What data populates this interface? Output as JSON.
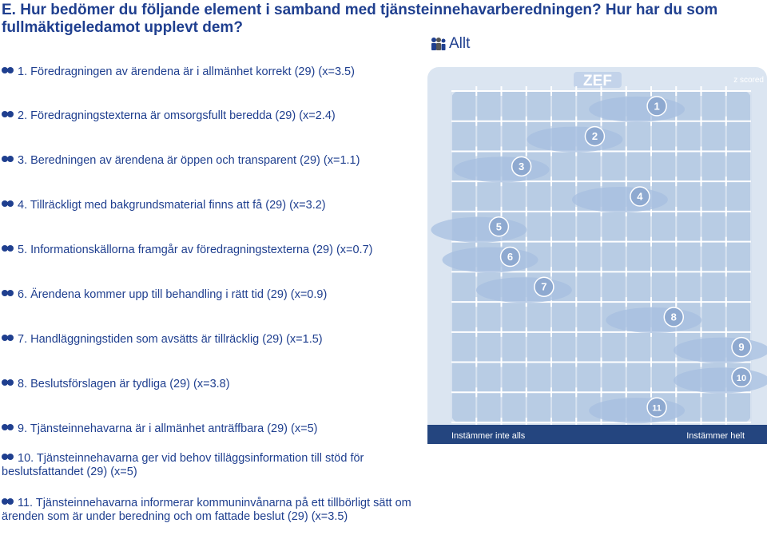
{
  "title": "E. Hur bedömer du följande element i samband med tjänsteinnehavarberedningen? Hur har du som fullmäktigeledamot upplevt dem?",
  "group_label": "Allt",
  "questions": [
    "1. Föredragningen av ärendena är i allmänhet korrekt (29) (x=3.5)",
    "2. Föredragningstexterna är omsorgsfullt beredda (29) (x=2.4)",
    "3. Beredningen av ärendena är öppen och transparent (29) (x=1.1)",
    "4. Tillräckligt med bakgrundsmaterial finns att få (29) (x=3.2)",
    "5. Informationskällorna framgår av föredragningstexterna (29) (x=0.7)",
    "6. Ärendena kommer upp till behandling i rätt tid (29) (x=0.9)",
    "7. Handläggningstiden som avsätts är tillräcklig (29) (x=1.5)",
    "8. Beslutsförslagen är tydliga (29) (x=3.8)",
    "9. Tjänsteinnehavarna är i allmänhet anträffbara (29) (x=5)",
    "10. Tjänsteinnehavarna ger vid behov tilläggsinformation till stöd för beslutsfattandet (29) (x=5)",
    "11. Tjänsteinnehavarna informerar kommuninvånarna på ett tillbörligt sätt om ärenden som är under beredning och om fattade beslut (29) (x=3.5)"
  ],
  "chart_data": {
    "type": "scatter",
    "logo": "ZEF",
    "badge": "z scored",
    "xlabel_left": "Instämmer inte alls",
    "xlabel_right": "Instämmer helt",
    "items": [
      {
        "label": "1",
        "x": 3.5
      },
      {
        "label": "2",
        "x": 2.4
      },
      {
        "label": "3",
        "x": 1.1
      },
      {
        "label": "4",
        "x": 3.2
      },
      {
        "label": "5",
        "x": 0.7
      },
      {
        "label": "6",
        "x": 0.9
      },
      {
        "label": "7",
        "x": 1.5
      },
      {
        "label": "8",
        "x": 3.8
      },
      {
        "label": "9",
        "x": 5
      },
      {
        "label": "10",
        "x": 5
      },
      {
        "label": "11",
        "x": 3.5
      }
    ],
    "xlim": [
      0,
      5
    ],
    "grid": true
  },
  "colors": {
    "title": "#1f3f8f",
    "panel": "#dbe5f1",
    "band": "#b8cce4",
    "marker": "#8ea9d0",
    "halo": "#a7bfe0",
    "footer": "#24457f"
  }
}
